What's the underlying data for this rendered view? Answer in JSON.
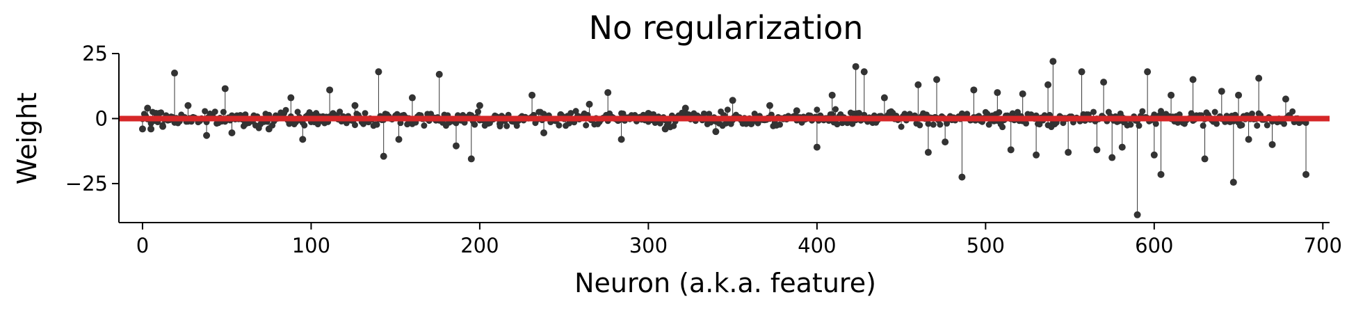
{
  "chart_data": {
    "type": "scatter",
    "subtype": "stem",
    "title": "No regularization",
    "xlabel": "Neuron (a.k.a. feature)",
    "ylabel": "Weight",
    "xlim": [
      -14,
      704
    ],
    "ylim": [
      -40,
      25
    ],
    "x_ticks": [
      0,
      100,
      200,
      300,
      400,
      500,
      600,
      700
    ],
    "x_tick_labels": [
      "0",
      "100",
      "200",
      "300",
      "400",
      "500",
      "600",
      "700"
    ],
    "y_ticks": [
      25,
      0,
      -25
    ],
    "y_tick_labels": [
      "25",
      "0",
      "−25"
    ],
    "grid": false,
    "legend": "none",
    "baseline": 0,
    "colors": {
      "markers": "#333333",
      "stems": "#333333",
      "baseline": "#d62728"
    },
    "series": [
      {
        "x": [
          0,
          3,
          5,
          8,
          12,
          19,
          27,
          38,
          49,
          53,
          61,
          75,
          88,
          95,
          111,
          126,
          140,
          143,
          152,
          160,
          176,
          186,
          195,
          200,
          212,
          231,
          238,
          248,
          265,
          276,
          284,
          300,
          310,
          322,
          340,
          350,
          361,
          372,
          388,
          400,
          409,
          423,
          428,
          440,
          460,
          466,
          471,
          476,
          486,
          493,
          507,
          515,
          522,
          530,
          537,
          540,
          549,
          557,
          566,
          570,
          575,
          581,
          590,
          596,
          600,
          604,
          610,
          623,
          630,
          640,
          647,
          650,
          656,
          662,
          670,
          678,
          690
        ],
        "values": [
          -4,
          4,
          -4,
          2,
          -3,
          17.5,
          5,
          -6.5,
          11.5,
          -5.5,
          -2,
          -4,
          8,
          -8,
          11,
          5,
          18,
          -14.5,
          -8,
          8,
          17,
          -10.5,
          -15.5,
          5,
          -2,
          9,
          -5.5,
          1.5,
          5.5,
          10,
          -8,
          2,
          -4,
          4,
          -5,
          7,
          -2,
          5,
          3,
          -11,
          9,
          20,
          18,
          8,
          13,
          -13,
          15,
          -9,
          -22.5,
          11,
          10,
          -12,
          9.5,
          -14,
          13,
          22,
          -13,
          18,
          -12,
          14,
          -15,
          -11,
          -37,
          18,
          -14,
          -21.5,
          9,
          15,
          -15.5,
          10.5,
          -24.5,
          9,
          -8,
          15.5,
          -10,
          7.5,
          -21.5
        ]
      }
    ]
  }
}
